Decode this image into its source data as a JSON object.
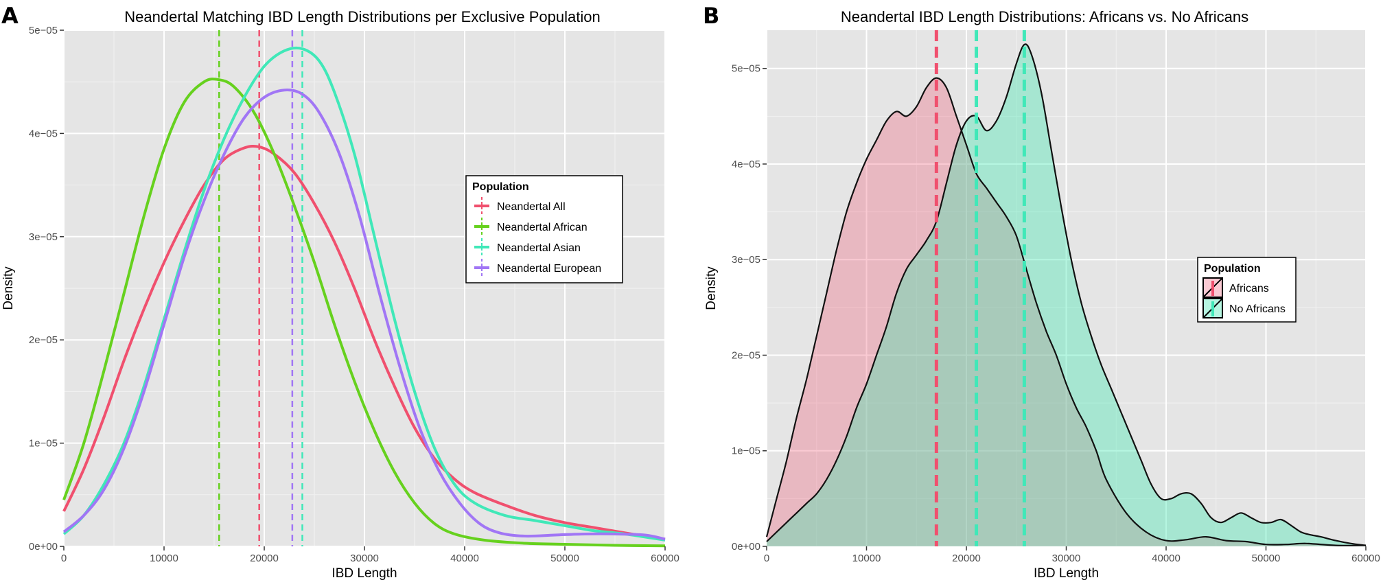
{
  "panels": {
    "a_letter": "A",
    "b_letter": "B"
  },
  "chart_data": [
    {
      "type": "line",
      "title": "Neandertal Matching IBD Length Distributions per Exclusive Population",
      "xlabel": "IBD Length",
      "ylabel": "Density",
      "xlim": [
        0,
        60000
      ],
      "ylim": [
        0,
        5e-05
      ],
      "x_ticks": [
        0,
        10000,
        20000,
        30000,
        40000,
        50000,
        60000
      ],
      "x_tick_labels": [
        "0",
        "10000",
        "20000",
        "30000",
        "40000",
        "50000",
        "60000"
      ],
      "y_ticks": [
        0,
        1e-05,
        2e-05,
        3e-05,
        4e-05,
        5e-05
      ],
      "y_tick_labels": [
        "0e+00",
        "1e−05",
        "2e−05",
        "3e−05",
        "4e−05",
        "5e−05"
      ],
      "grid": true,
      "legend": {
        "title": "Population",
        "position": "right"
      },
      "series": [
        {
          "name": "Neandertal All",
          "color": "#f0506e",
          "mean_line": 19500,
          "x": [
            0,
            2000,
            4000,
            6000,
            8000,
            10000,
            12000,
            14000,
            16000,
            18000,
            19500,
            21000,
            23000,
            25000,
            27000,
            29000,
            31000,
            33000,
            35000,
            37000,
            39000,
            41000,
            44000,
            47000,
            50000,
            53000,
            56000,
            58000,
            60000
          ],
          "y": [
            3.4e-06,
            7.5e-06,
            1.25e-05,
            1.8e-05,
            2.3e-05,
            2.75e-05,
            3.15e-05,
            3.5e-05,
            3.75e-05,
            3.86e-05,
            3.87e-05,
            3.8e-05,
            3.62e-05,
            3.32e-05,
            2.95e-05,
            2.5e-05,
            2e-05,
            1.55e-05,
            1.15e-05,
            8.5e-06,
            6.5e-06,
            5.2e-06,
            4e-06,
            3e-06,
            2.3e-06,
            1.8e-06,
            1.3e-06,
            1e-06,
            7e-07
          ]
        },
        {
          "name": "Neandertal African",
          "color": "#66d11e",
          "mean_line": 15500,
          "x": [
            0,
            2000,
            4000,
            6000,
            8000,
            10000,
            12000,
            14000,
            15500,
            17000,
            19000,
            21000,
            23000,
            25000,
            27000,
            29000,
            31000,
            33000,
            35000,
            37000,
            39000,
            42000,
            46000,
            50000,
            55000,
            60000
          ],
          "y": [
            4.5e-06,
            1e-05,
            1.7e-05,
            2.45e-05,
            3.2e-05,
            3.85e-05,
            4.3e-05,
            4.5e-05,
            4.52e-05,
            4.45e-05,
            4.2e-05,
            3.8e-05,
            3.3e-05,
            2.75e-05,
            2.15e-05,
            1.6e-05,
            1.12e-05,
            7.2e-06,
            4.2e-06,
            2.2e-06,
            1.2e-06,
            6e-07,
            3e-07,
            2e-07,
            1e-07,
            5e-08
          ]
        },
        {
          "name": "Neandertal Asian",
          "color": "#40e8b8",
          "mean_line": 23800,
          "x": [
            0,
            2000,
            4000,
            6000,
            8000,
            10000,
            12000,
            14000,
            16000,
            18000,
            20000,
            22000,
            23800,
            25500,
            27000,
            29000,
            31000,
            33000,
            35000,
            37000,
            39000,
            41000,
            44000,
            47000,
            50000,
            53000,
            56000,
            60000
          ],
          "y": [
            1.2e-06,
            3e-06,
            6e-06,
            1e-05,
            1.55e-05,
            2.2e-05,
            2.85e-05,
            3.45e-05,
            3.95e-05,
            4.35e-05,
            4.65e-05,
            4.8e-05,
            4.82e-05,
            4.7e-05,
            4.4e-05,
            3.8e-05,
            3e-05,
            2.2e-05,
            1.5e-05,
            9.5e-06,
            6e-06,
            4.2e-06,
            3e-06,
            2.5e-06,
            2e-06,
            1.5e-06,
            1.2e-06,
            6e-07
          ]
        },
        {
          "name": "Neandertal European",
          "color": "#a176f5",
          "mean_line": 22800,
          "x": [
            0,
            2000,
            4000,
            6000,
            8000,
            10000,
            12000,
            14000,
            16000,
            18000,
            20000,
            22000,
            23800,
            25500,
            27500,
            29500,
            31500,
            33500,
            35500,
            37500,
            39500,
            41500,
            43500,
            46000,
            49000,
            52000,
            55000,
            58000,
            60000
          ],
          "y": [
            1.4e-06,
            3e-06,
            5.5e-06,
            9.5e-06,
            1.5e-05,
            2.15e-05,
            2.8e-05,
            3.35e-05,
            3.8e-05,
            4.15e-05,
            4.35e-05,
            4.42e-05,
            4.38e-05,
            4.2e-05,
            3.8e-05,
            3.2e-05,
            2.45e-05,
            1.75e-05,
            1.15e-05,
            7.2e-06,
            4.2e-06,
            2.2e-06,
            1.3e-06,
            1e-06,
            1.1e-06,
            1.2e-06,
            1.2e-06,
            1.1e-06,
            7e-07
          ]
        }
      ]
    },
    {
      "type": "area",
      "title": "Neandertal IBD Length Distributions: Africans vs. No Africans",
      "xlabel": "IBD Length",
      "ylabel": "Density",
      "xlim": [
        0,
        60000
      ],
      "ylim": [
        0,
        5.4e-05
      ],
      "x_ticks": [
        0,
        10000,
        20000,
        30000,
        40000,
        50000,
        60000
      ],
      "x_tick_labels": [
        "0",
        "10000",
        "20000",
        "30000",
        "40000",
        "50000",
        "60000"
      ],
      "y_ticks": [
        0,
        1e-05,
        2e-05,
        3e-05,
        4e-05,
        5e-05
      ],
      "y_tick_labels": [
        "0e+00",
        "1e−05",
        "2e−05",
        "3e−05",
        "4e−05",
        "5e−05"
      ],
      "grid": true,
      "legend": {
        "title": "Population",
        "position": "right"
      },
      "vlines": [
        {
          "x": 17000,
          "color": "#f0506e"
        },
        {
          "x": 21000,
          "color": "#40e8b8"
        },
        {
          "x": 25800,
          "color": "#40e8b8"
        }
      ],
      "series": [
        {
          "name": "Africans",
          "color": "#f0506e",
          "fill": "rgba(240,80,110,0.3)",
          "x": [
            0,
            1000,
            2000,
            3000,
            4000,
            5000,
            6000,
            7000,
            8000,
            9000,
            10000,
            11000,
            12000,
            13000,
            14000,
            15000,
            16000,
            17000,
            18000,
            19000,
            20000,
            21000,
            22000,
            23000,
            24000,
            25000,
            26000,
            27000,
            28000,
            29000,
            30000,
            31000,
            32000,
            33000,
            34000,
            36000,
            38000,
            40000,
            42000,
            44000,
            46000,
            48000,
            50000,
            52000,
            54000,
            57000,
            60000
          ],
          "y": [
            1e-06,
            5e-06,
            9e-06,
            1.35e-05,
            1.75e-05,
            2.2e-05,
            2.65e-05,
            3.1e-05,
            3.5e-05,
            3.8e-05,
            4.05e-05,
            4.25e-05,
            4.45e-05,
            4.55e-05,
            4.5e-05,
            4.6e-05,
            4.8e-05,
            4.9e-05,
            4.8e-05,
            4.5e-05,
            4.2e-05,
            3.9e-05,
            3.75e-05,
            3.6e-05,
            3.45e-05,
            3.25e-05,
            2.9e-05,
            2.55e-05,
            2.25e-05,
            2e-05,
            1.7e-05,
            1.45e-05,
            1.25e-05,
            1e-05,
            7e-06,
            3.5e-06,
            1.5e-06,
            6e-07,
            7e-07,
            1e-06,
            6e-07,
            5e-07,
            2e-07,
            2e-07,
            3e-07,
            1e-07,
            1e-07
          ]
        },
        {
          "name": "No Africans",
          "color": "#40e8b8",
          "fill": "rgba(64,232,176,0.38)",
          "x": [
            0,
            1000,
            2000,
            3000,
            4000,
            5000,
            6000,
            7000,
            8000,
            9000,
            10000,
            11000,
            12000,
            13000,
            14000,
            15000,
            16000,
            17000,
            18000,
            19000,
            20000,
            21000,
            22000,
            23000,
            24000,
            25000,
            25800,
            26500,
            27500,
            28500,
            29500,
            30500,
            31500,
            32500,
            33500,
            34500,
            35500,
            36500,
            37500,
            38500,
            39500,
            40500,
            41500,
            42500,
            43500,
            44500,
            45500,
            46500,
            47500,
            48500,
            49500,
            50500,
            51500,
            52500,
            53500,
            54500,
            55500,
            57000,
            58500,
            60000
          ],
          "y": [
            5e-07,
            1.5e-06,
            2.5e-06,
            3.5e-06,
            4.5e-06,
            5.5e-06,
            7e-06,
            9e-06,
            1.15e-05,
            1.45e-05,
            1.7e-05,
            2e-05,
            2.3e-05,
            2.65e-05,
            2.9e-05,
            3.05e-05,
            3.2e-05,
            3.4e-05,
            3.8e-05,
            4.2e-05,
            4.45e-05,
            4.5e-05,
            4.35e-05,
            4.45e-05,
            4.7e-05,
            5.05e-05,
            5.25e-05,
            5.15e-05,
            4.75e-05,
            4.15e-05,
            3.55e-05,
            3e-05,
            2.55e-05,
            2.2e-05,
            1.9e-05,
            1.65e-05,
            1.4e-05,
            1.15e-05,
            9e-06,
            6.5e-06,
            5e-06,
            5e-06,
            5.5e-06,
            5.5e-06,
            4.5e-06,
            3e-06,
            2.5e-06,
            3e-06,
            3.5e-06,
            3e-06,
            2.5e-06,
            2.5e-06,
            2.8e-06,
            2.2e-06,
            1.5e-06,
            1.2e-06,
            1e-06,
            6e-07,
            3e-07,
            1e-07
          ]
        }
      ]
    }
  ]
}
